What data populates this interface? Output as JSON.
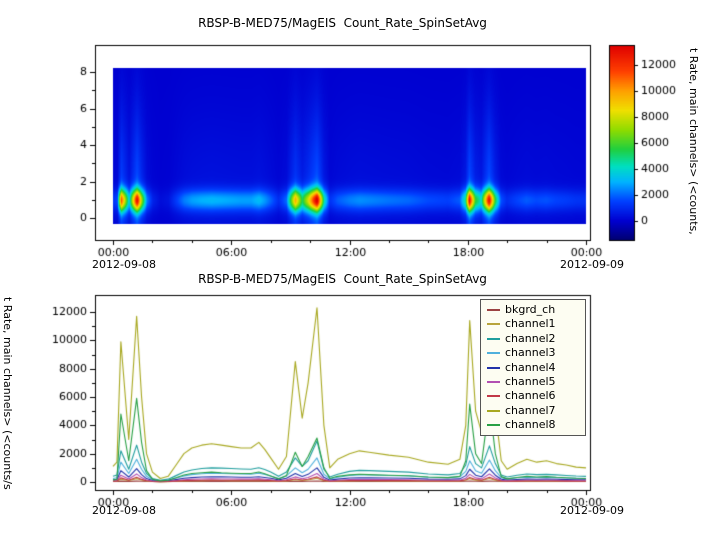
{
  "window": {
    "background": "#ffffff"
  },
  "chart_data": [
    {
      "type": "heatmap",
      "title": "RBSP-B-MED75/MagEIS  Count_Rate_SpinSetAvg",
      "x_date_start": "2012-09-08",
      "x_date_end": "2012-09-09",
      "xlim_hours": [
        0,
        24
      ],
      "xticks": [
        {
          "t": 0,
          "label": "00:00"
        },
        {
          "t": 6,
          "label": "06:00"
        },
        {
          "t": 12,
          "label": "12:00"
        },
        {
          "t": 18,
          "label": "18:00"
        },
        {
          "t": 24,
          "label": "00:00"
        }
      ],
      "ylim": [
        0,
        8
      ],
      "yticks": [
        0,
        2,
        4,
        6,
        8
      ],
      "colorbar": {
        "label": "t Rate, main channels> (<counts,",
        "ticks": [
          0,
          2000,
          4000,
          6000,
          8000,
          10000,
          12000
        ],
        "vmin": -1500,
        "vmax": 13500
      },
      "colormap_stops": [
        [
          -1500,
          "#000070"
        ],
        [
          0,
          "#0000d0"
        ],
        [
          1500,
          "#0040ff"
        ],
        [
          3000,
          "#00b4ff"
        ],
        [
          4200,
          "#00e0c0"
        ],
        [
          5500,
          "#20d040"
        ],
        [
          7000,
          "#90dc00"
        ],
        [
          8500,
          "#f0e000"
        ],
        [
          10000,
          "#ffa000"
        ],
        [
          11500,
          "#ff4000"
        ],
        [
          13500,
          "#e00000"
        ]
      ],
      "band": {
        "center_y": 1.0,
        "sigma": 0.6,
        "halo_amp": 0.15,
        "halo_sigma": 5.0
      },
      "x_hours": [
        0,
        0.2,
        0.4,
        0.8,
        1.2,
        1.45,
        1.7,
        2.0,
        2.4,
        2.8,
        3.2,
        3.6,
        4.0,
        4.5,
        5.0,
        5.5,
        6.0,
        6.5,
        7.0,
        7.4,
        7.7,
        8.0,
        8.4,
        8.8,
        9.25,
        9.6,
        9.9,
        10.35,
        10.7,
        11.0,
        11.4,
        12.0,
        12.5,
        13.0,
        14.0,
        15.0,
        16.0,
        17.0,
        17.6,
        17.9,
        18.1,
        18.4,
        18.7,
        19.1,
        19.4,
        19.7,
        20.0,
        20.5,
        21.0,
        21.5,
        22.0,
        22.5,
        23.0,
        23.5,
        24.0
      ],
      "column_intensity": [
        1100,
        1400,
        9900,
        3000,
        11700,
        6000,
        2000,
        700,
        250,
        400,
        1200,
        2000,
        2400,
        2600,
        2700,
        2600,
        2500,
        2400,
        2400,
        2800,
        2300,
        1700,
        900,
        1800,
        8500,
        4500,
        7000,
        12300,
        4000,
        1000,
        1600,
        2000,
        2200,
        2100,
        1900,
        1750,
        1400,
        1250,
        1600,
        4000,
        11400,
        5000,
        3500,
        11600,
        5000,
        1500,
        900,
        1300,
        1600,
        1400,
        1500,
        1300,
        1200,
        1050,
        1000
      ]
    },
    {
      "type": "line",
      "title": "RBSP-B-MED75/MagEIS  Count_Rate_SpinSetAvg",
      "ylabel": "t Rate, main channels> (<counts/s",
      "x_date_start": "2012-09-08",
      "x_date_end": "2012-09-09",
      "xlim_hours": [
        0,
        24
      ],
      "xticks": [
        {
          "t": 0,
          "label": "00:00"
        },
        {
          "t": 6,
          "label": "06:00"
        },
        {
          "t": 12,
          "label": "12:00"
        },
        {
          "t": 18,
          "label": "18:00"
        },
        {
          "t": 24,
          "label": "00:00"
        }
      ],
      "ylim": [
        0,
        12000
      ],
      "yticks": [
        0,
        2000,
        4000,
        6000,
        8000,
        10000,
        12000
      ],
      "legend_position": "top-right-inside",
      "x_hours": [
        0,
        0.2,
        0.4,
        0.8,
        1.2,
        1.45,
        1.7,
        2.0,
        2.4,
        2.8,
        3.2,
        3.6,
        4.0,
        4.5,
        5.0,
        5.5,
        6.0,
        6.5,
        7.0,
        7.4,
        7.7,
        8.0,
        8.4,
        8.8,
        9.25,
        9.6,
        9.9,
        10.35,
        10.7,
        11.0,
        11.4,
        12.0,
        12.5,
        13.0,
        14.0,
        15.0,
        16.0,
        17.0,
        17.6,
        17.9,
        18.1,
        18.4,
        18.7,
        19.1,
        19.4,
        19.7,
        20.0,
        20.5,
        21.0,
        21.5,
        22.0,
        22.5,
        23.0,
        23.5,
        24.0
      ],
      "series": [
        {
          "name": "bkgrd_ch",
          "color": "#9c4242",
          "values": [
            40,
            40,
            60,
            45,
            65,
            50,
            42,
            35,
            30,
            32,
            36,
            40,
            42,
            43,
            44,
            43,
            43,
            42,
            42,
            43,
            42,
            40,
            36,
            40,
            55,
            46,
            52,
            68,
            45,
            36,
            38,
            41,
            42,
            42,
            41,
            40,
            38,
            37,
            39,
            48,
            64,
            50,
            45,
            65,
            50,
            38,
            36,
            38,
            39,
            38,
            39,
            38,
            37,
            36,
            36
          ]
        },
        {
          "name": "channel1",
          "color": "#b8a43c",
          "values": [
            70,
            75,
            200,
            100,
            240,
            140,
            70,
            30,
            15,
            25,
            50,
            75,
            90,
            100,
            105,
            102,
            100,
            98,
            96,
            105,
            95,
            75,
            45,
            75,
            160,
            105,
            145,
            260,
            95,
            40,
            55,
            80,
            85,
            83,
            80,
            75,
            60,
            55,
            65,
            120,
            240,
            130,
            100,
            245,
            130,
            55,
            40,
            52,
            60,
            56,
            58,
            54,
            50,
            46,
            45
          ]
        },
        {
          "name": "channel2",
          "color": "#1f9e9e",
          "values": [
            400,
            500,
            2200,
            900,
            2600,
            1400,
            600,
            250,
            120,
            200,
            450,
            700,
            850,
            950,
            1000,
            980,
            950,
            920,
            900,
            1000,
            880,
            700,
            400,
            700,
            1700,
            1100,
            1500,
            2900,
            900,
            350,
            550,
            750,
            820,
            800,
            750,
            700,
            560,
            500,
            600,
            1200,
            2500,
            1300,
            1000,
            2550,
            1300,
            500,
            350,
            480,
            560,
            520,
            540,
            500,
            460,
            420,
            400
          ]
        },
        {
          "name": "channel3",
          "color": "#4fb0dd",
          "values": [
            250,
            300,
            1400,
            600,
            1600,
            900,
            400,
            160,
            80,
            130,
            280,
            430,
            520,
            580,
            620,
            600,
            580,
            560,
            550,
            620,
            540,
            430,
            250,
            430,
            1000,
            650,
            900,
            1700,
            550,
            220,
            340,
            460,
            500,
            490,
            460,
            430,
            340,
            310,
            370,
            750,
            1500,
            800,
            620,
            1550,
            800,
            310,
            220,
            300,
            340,
            320,
            330,
            310,
            280,
            260,
            250
          ]
        },
        {
          "name": "channel4",
          "color": "#2233aa",
          "values": [
            150,
            180,
            800,
            350,
            950,
            520,
            240,
            100,
            50,
            80,
            170,
            260,
            310,
            350,
            370,
            360,
            350,
            340,
            330,
            370,
            320,
            260,
            150,
            260,
            600,
            390,
            540,
            1000,
            330,
            130,
            200,
            280,
            300,
            290,
            280,
            260,
            200,
            190,
            220,
            450,
            900,
            480,
            370,
            930,
            480,
            190,
            130,
            180,
            200,
            190,
            200,
            190,
            170,
            160,
            150
          ]
        },
        {
          "name": "channel5",
          "color": "#b24fb2",
          "values": [
            90,
            110,
            480,
            210,
            570,
            310,
            140,
            60,
            30,
            50,
            100,
            160,
            190,
            210,
            220,
            215,
            210,
            205,
            200,
            220,
            195,
            155,
            90,
            155,
            360,
            230,
            320,
            600,
            200,
            80,
            120,
            170,
            180,
            175,
            170,
            155,
            120,
            115,
            130,
            270,
            540,
            290,
            220,
            560,
            290,
            115,
            80,
            110,
            120,
            115,
            120,
            115,
            100,
            95,
            90
          ]
        },
        {
          "name": "channel6",
          "color": "#c23848",
          "values": [
            55,
            65,
            290,
            125,
            340,
            185,
            85,
            35,
            20,
            30,
            60,
            95,
            115,
            125,
            130,
            128,
            125,
            122,
            120,
            130,
            118,
            95,
            55,
            95,
            215,
            140,
            190,
            360,
            120,
            50,
            70,
            100,
            110,
            105,
            100,
            95,
            75,
            70,
            80,
            160,
            325,
            175,
            130,
            335,
            175,
            70,
            50,
            65,
            75,
            70,
            72,
            68,
            62,
            58,
            55
          ]
        },
        {
          "name": "channel7",
          "color": "#a8a820",
          "values": [
            1100,
            1400,
            9900,
            3000,
            11700,
            6000,
            2000,
            700,
            250,
            400,
            1200,
            2000,
            2400,
            2600,
            2700,
            2600,
            2500,
            2400,
            2400,
            2800,
            2300,
            1700,
            900,
            1800,
            8500,
            4500,
            7000,
            12300,
            4000,
            1000,
            1600,
            2000,
            2200,
            2100,
            1900,
            1750,
            1400,
            1250,
            1600,
            4000,
            11400,
            5000,
            3500,
            11600,
            5000,
            1500,
            900,
            1300,
            1600,
            1400,
            1500,
            1300,
            1200,
            1050,
            1000
          ]
        },
        {
          "name": "channel8",
          "color": "#28a044",
          "values": [
            150,
            200,
            4800,
            1500,
            5900,
            2800,
            800,
            200,
            80,
            120,
            300,
            500,
            600,
            650,
            700,
            650,
            620,
            600,
            600,
            700,
            580,
            420,
            220,
            450,
            2100,
            1100,
            1800,
            3100,
            1000,
            250,
            400,
            500,
            550,
            520,
            480,
            440,
            350,
            310,
            400,
            1500,
            5500,
            2000,
            1300,
            5600,
            2000,
            380,
            220,
            320,
            400,
            350,
            380,
            330,
            300,
            260,
            250
          ]
        }
      ]
    }
  ]
}
